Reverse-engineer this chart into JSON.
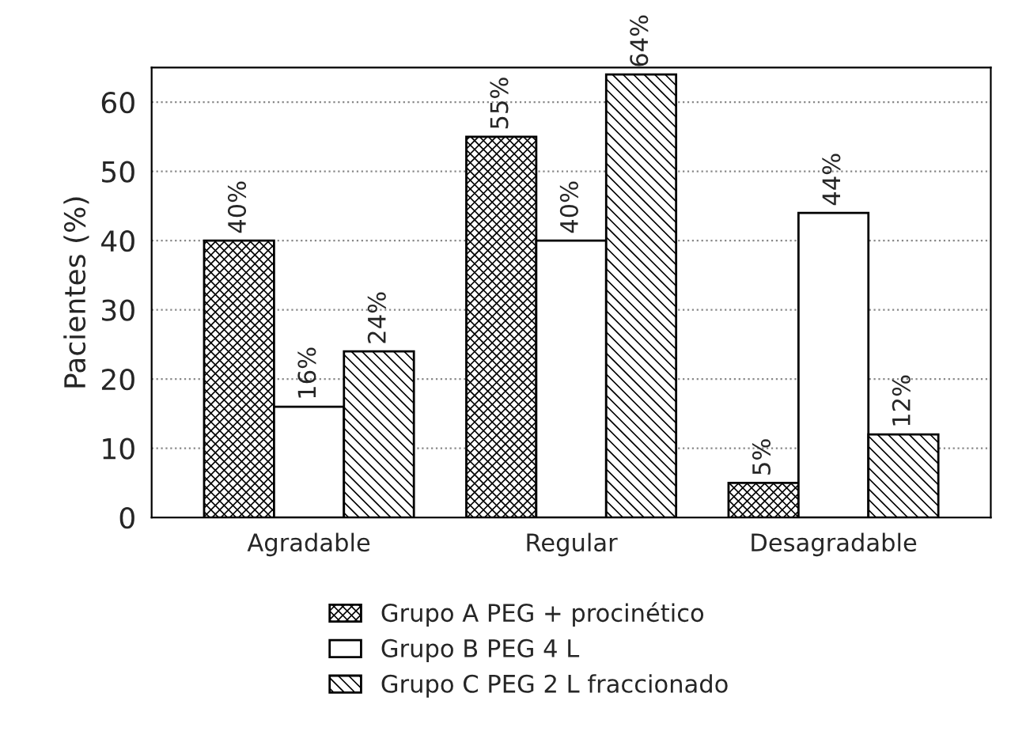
{
  "chart_data": {
    "type": "bar",
    "ylabel": "Pacientes (%)",
    "categories": [
      "Agradable",
      "Regular",
      "Desagradable"
    ],
    "series": [
      {
        "name": "Grupo A PEG + procinético",
        "color": "#000000",
        "values": [
          40,
          55,
          5
        ],
        "value_labels": [
          "40%",
          "55%",
          "5%"
        ]
      },
      {
        "name": "Grupo B PEG 4 L",
        "color": "#ffffff",
        "values": [
          16,
          40,
          44
        ],
        "value_labels": [
          "16%",
          "40%",
          "44%"
        ]
      },
      {
        "name": "Grupo C PEG 2 L fraccionado",
        "color": "#000000",
        "values": [
          24,
          64,
          12
        ],
        "value_labels": [
          "24%",
          "64%",
          "12%"
        ]
      }
    ],
    "ylim": [
      0,
      65
    ],
    "yticks": [
      0,
      10,
      20,
      30,
      40,
      50,
      60
    ],
    "grid": "y",
    "legend": "bottom"
  }
}
